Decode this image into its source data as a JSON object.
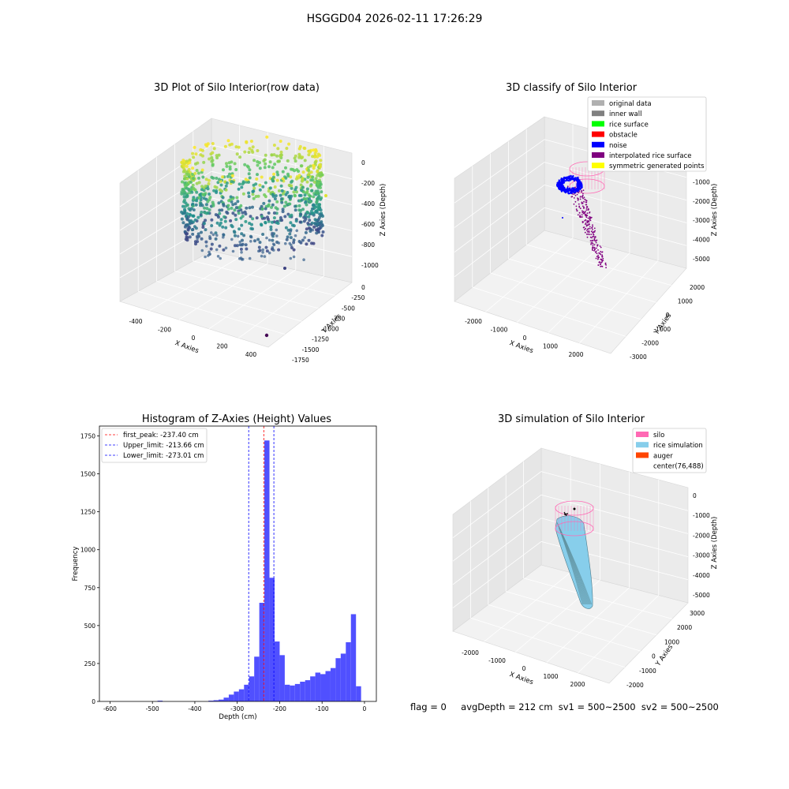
{
  "suptitle": "HSGGD04 2026-02-11 17:26:29",
  "footer": {
    "flag": "flag = 0",
    "stats": "avgDepth = 212 cm  sv1 = 500~2500  sv2 = 500~2500"
  },
  "colors": {
    "histogram_bar": "#5050ff",
    "first_peak_line": "#ff0000",
    "limit_line": "#0000ff",
    "silo": "#ff69b4",
    "rice_simulation": "#87ceeb",
    "auger": "#ff4500",
    "noise": "#0000ff",
    "interpolated": "#800080"
  },
  "chart_data": [
    {
      "type": "scatter",
      "projection": "3d",
      "title": "3D Plot of Silo Interior(row data)",
      "xlabel": "X Axies",
      "ylabel": "Y Axies",
      "zlabel": "Z Axies (Depth)",
      "x_ticks": [
        "-400",
        "-200",
        "0",
        "200",
        "400"
      ],
      "y_ticks": [
        "0",
        "-250",
        "-500",
        "-750",
        "-1000",
        "-1250",
        "-1500",
        "-1750"
      ],
      "z_ticks": [
        "0",
        "-200",
        "-400",
        "-600",
        "-800",
        "-1000"
      ],
      "colormap": "viridis",
      "grid": true
    },
    {
      "type": "scatter",
      "projection": "3d",
      "title": "3D classify of Silo Interior",
      "xlabel": "X Axies",
      "ylabel": "Y Axies",
      "zlabel": "Z Axies (Depth)",
      "x_ticks": [
        "-2000",
        "-1000",
        "0",
        "1000",
        "2000"
      ],
      "y_ticks": [
        "2000",
        "1000",
        "0",
        "-1000",
        "-2000",
        "-3000"
      ],
      "z_ticks": [
        "0",
        "-1000",
        "-2000",
        "-3000",
        "-4000",
        "-5000"
      ],
      "legend_position": "top-right",
      "legend": [
        {
          "label": "original data",
          "color": "#b0b0b0"
        },
        {
          "label": "inner wall",
          "color": "#808080"
        },
        {
          "label": "rice surface",
          "color": "#00ff00"
        },
        {
          "label": "obstacle",
          "color": "#ff0000"
        },
        {
          "label": "noise",
          "color": "#0000ff"
        },
        {
          "label": "interpolated rice surface",
          "color": "#800080"
        },
        {
          "label": "symmetric generated points",
          "color": "#ffff00"
        }
      ],
      "grid": true
    },
    {
      "type": "bar",
      "title": "Histogram of Z-Axies (Height) Values",
      "xlabel": "Depth (cm)",
      "ylabel": "Frequency",
      "xlim": [
        -625,
        28
      ],
      "ylim": [
        0,
        1815
      ],
      "x_ticks": [
        -600,
        -500,
        -400,
        -300,
        -200,
        -100,
        0
      ],
      "y_ticks": [
        0,
        250,
        500,
        750,
        1000,
        1250,
        1500,
        1750
      ],
      "bin_width": 12,
      "bins": [
        {
          "x": -488,
          "value": 5
        },
        {
          "x": -368,
          "value": 5
        },
        {
          "x": -356,
          "value": 8
        },
        {
          "x": -344,
          "value": 12
        },
        {
          "x": -332,
          "value": 25
        },
        {
          "x": -320,
          "value": 45
        },
        {
          "x": -308,
          "value": 65
        },
        {
          "x": -296,
          "value": 80
        },
        {
          "x": -284,
          "value": 110
        },
        {
          "x": -272,
          "value": 165
        },
        {
          "x": -260,
          "value": 295
        },
        {
          "x": -248,
          "value": 650
        },
        {
          "x": -236,
          "value": 1720
        },
        {
          "x": -224,
          "value": 815
        },
        {
          "x": -212,
          "value": 395
        },
        {
          "x": -200,
          "value": 305
        },
        {
          "x": -188,
          "value": 110
        },
        {
          "x": -176,
          "value": 105
        },
        {
          "x": -164,
          "value": 115
        },
        {
          "x": -152,
          "value": 130
        },
        {
          "x": -140,
          "value": 140
        },
        {
          "x": -128,
          "value": 165
        },
        {
          "x": -116,
          "value": 190
        },
        {
          "x": -104,
          "value": 180
        },
        {
          "x": -92,
          "value": 200
        },
        {
          "x": -80,
          "value": 220
        },
        {
          "x": -68,
          "value": 285
        },
        {
          "x": -56,
          "value": 315
        },
        {
          "x": -44,
          "value": 390
        },
        {
          "x": -32,
          "value": 575
        },
        {
          "x": -20,
          "value": 100
        }
      ],
      "reference_lines": [
        {
          "label": "first_peak: -237.40 cm",
          "value": -237.4,
          "color": "#ff0000"
        },
        {
          "label": "Upper_limit: -213.66 cm",
          "value": -213.66,
          "color": "#0000ff"
        },
        {
          "label": "Lower_limit: -273.01 cm",
          "value": -273.01,
          "color": "#0000ff"
        }
      ],
      "legend_position": "top-left",
      "grid": false
    },
    {
      "type": "scatter",
      "projection": "3d",
      "title": "3D simulation of Silo Interior",
      "xlabel": "X Axies",
      "ylabel": "Y Axies",
      "zlabel": "Z Axies (Depth)",
      "x_ticks": [
        "-2000",
        "-1000",
        "0",
        "1000",
        "2000"
      ],
      "y_ticks": [
        "3000",
        "2000",
        "1000",
        "0",
        "-1000",
        "-2000"
      ],
      "z_ticks": [
        "0",
        "-1000",
        "-2000",
        "-3000",
        "-4000",
        "-5000"
      ],
      "legend_position": "top-right",
      "legend": [
        {
          "label": "silo",
          "color": "#ff69b4"
        },
        {
          "label": "rice simulation",
          "color": "#87ceeb"
        },
        {
          "label": "auger",
          "color": "#ff4500"
        },
        {
          "label": "center(76,488)",
          "color": "#ffffff"
        }
      ],
      "grid": true
    }
  ]
}
